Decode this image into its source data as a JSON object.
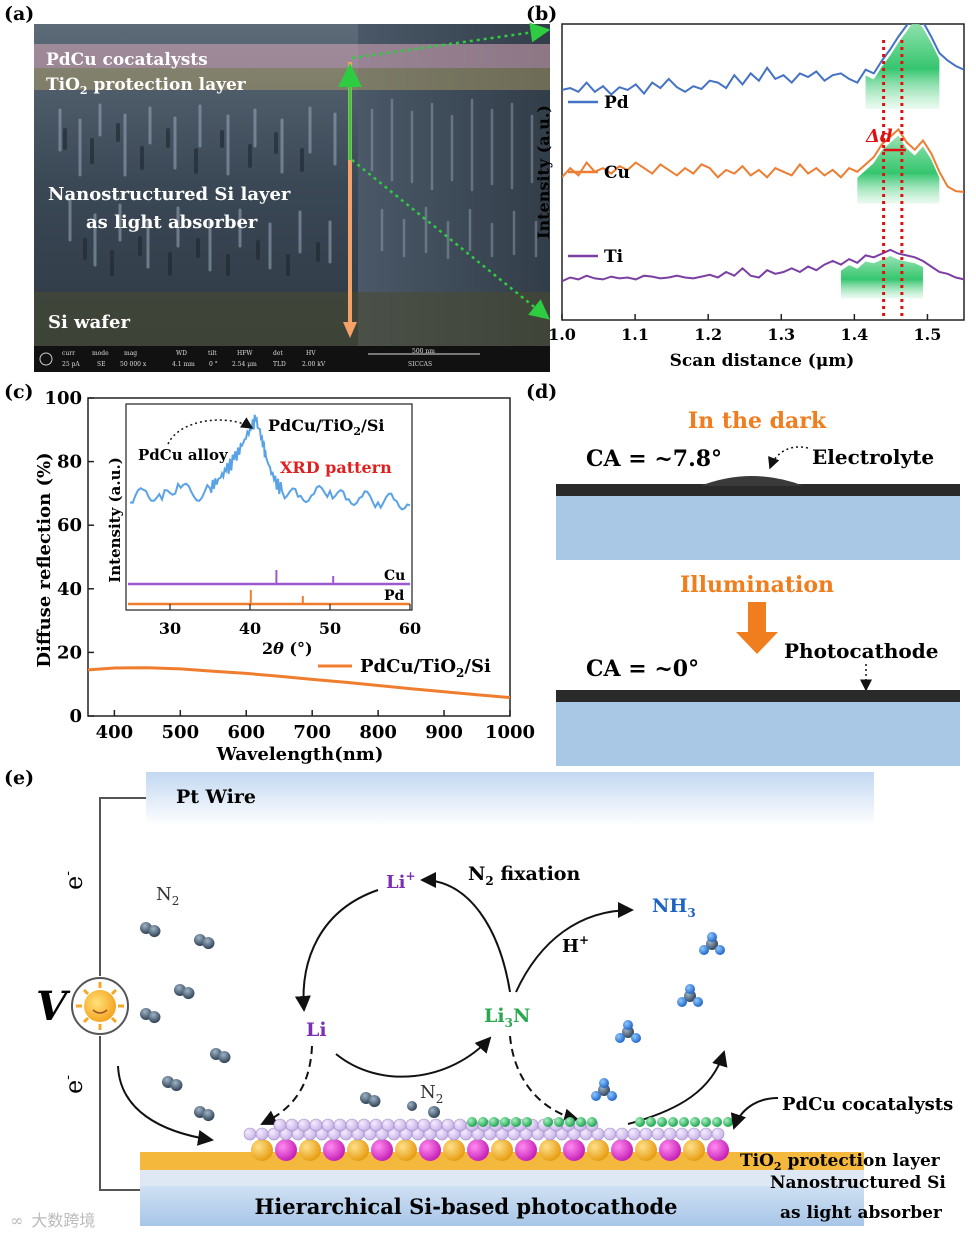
{
  "panel_labels": {
    "a": "(a)",
    "b": "(b)",
    "c": "(c)",
    "d": "(d)",
    "e": "(e)"
  },
  "a": {
    "labels": {
      "cocat": "PdCu cocatalysts",
      "tio2": "TiO",
      "tio2_sub": "2",
      "tio2_rest": " protection layer",
      "ns1": "Nanostructured Si layer",
      "ns2": "as light absorber",
      "wafer": "Si wafer"
    },
    "sem_bar": {
      "curr_h": "curr",
      "curr_v": "25 pA",
      "mode_h": "mode",
      "mode_v": "SE",
      "mag_h": "mag",
      "mag_v": "50 000 x",
      "wd_h": "WD",
      "wd_v": "4.1 mm",
      "tilt_h": "tilt",
      "tilt_v": "0 °",
      "hfw_h": "HFW",
      "hfw_v": "2.54 μm",
      "det_h": "det",
      "det_v": "TLD",
      "hv_h": "HV",
      "hv_v": "2.00 kV",
      "scale": "500 nm",
      "inst": "SICCAS"
    }
  },
  "c": {
    "legend": "PdCu/TiO",
    "legend_sub": "2",
    "legend_rest": "/Si",
    "inset": {
      "title": "PdCu/TiO",
      "title_sub": "2",
      "title_rest": "/Si",
      "peak_label": "PdCu alloy",
      "xrd": "XRD pattern",
      "ylabel": "Intensity (a.u.)",
      "xlabel_pre": "2",
      "xlabel_theta": "θ",
      "xlabel_post": " (°)",
      "cu": "Cu",
      "pd": "Pd",
      "xticks": [
        "30",
        "40",
        "50",
        "60"
      ]
    }
  },
  "d": {
    "dark": "In the dark",
    "ca1": "CA = ~7.8°",
    "electrolyte": "Electrolyte",
    "illum": "Illumination",
    "ca2": "CA = ~0°",
    "photocathode": "Photocathode",
    "colors": {
      "title": "#f07d1e",
      "arrow": "#f07d1e",
      "substrate": "#a8c8e6"
    }
  },
  "e": {
    "pt": "Pt Wire",
    "v": "V",
    "e_top": "e",
    "e_bot": "e",
    "n2": "N",
    "n2_sub": "2",
    "n2b": "N",
    "n2b_sub": "2",
    "li_plus": "Li",
    "li_plus_sup": "+",
    "n2fix": "N",
    "n2fix_sub": "2",
    "n2fix_rest": " fixation",
    "nh3": "NH",
    "nh3_sub": "3",
    "hplus": "H",
    "hplus_sup": "+",
    "li": "Li",
    "li3n": "Li",
    "li3n_sub": "3",
    "li3n_rest": "N",
    "cocat": "PdCu cocatalysts",
    "tio2": "TiO",
    "tio2_sub": "2",
    "tio2_rest": " protection layer",
    "ns1": "Nanostructured Si",
    "ns2": "as light absorber",
    "hier": "Hierarchical Si-based photocathode",
    "watermark": "大数跨境"
  },
  "chart_data": [
    {
      "panel": "b",
      "type": "line",
      "xlabel": "Scan distance (μm)",
      "ylabel": "Intensity (a.u.)",
      "xlim": [
        1.0,
        1.55
      ],
      "xticks": [
        "1.0",
        "1.1",
        "1.2",
        "1.3",
        "1.4",
        "1.5"
      ],
      "yticks": [],
      "delta_label": "Δd",
      "dashed_lines_x": [
        1.44,
        1.465
      ],
      "series": [
        {
          "name": "Pd",
          "color": "#4472c4",
          "offset": 0.74,
          "peak_x": 1.465,
          "values": [
            0.12,
            0.14,
            0.1,
            0.2,
            0.1,
            0.16,
            0.07,
            0.15,
            0.12,
            0.18,
            0.08,
            0.2,
            0.14,
            0.24,
            0.15,
            0.1,
            0.16,
            0.13,
            0.22,
            0.2,
            0.14,
            0.28,
            0.18,
            0.3,
            0.22,
            0.36,
            0.24,
            0.28,
            0.2,
            0.3,
            0.26,
            0.32,
            0.22,
            0.28,
            0.3,
            0.24,
            0.2,
            0.34,
            0.3,
            0.44,
            0.56,
            0.7,
            0.82,
            0.95,
            0.86,
            0.7,
            0.52,
            0.44,
            0.38,
            0.34
          ]
        },
        {
          "name": "Cu",
          "color": "#ed7d31",
          "offset": 0.42,
          "peak_x": 1.46,
          "values": [
            0.2,
            0.3,
            0.22,
            0.36,
            0.26,
            0.3,
            0.24,
            0.32,
            0.28,
            0.36,
            0.3,
            0.24,
            0.34,
            0.28,
            0.22,
            0.3,
            0.24,
            0.34,
            0.3,
            0.2,
            0.28,
            0.24,
            0.32,
            0.22,
            0.28,
            0.2,
            0.3,
            0.26,
            0.22,
            0.34,
            0.24,
            0.3,
            0.22,
            0.28,
            0.2,
            0.3,
            0.26,
            0.34,
            0.42,
            0.56,
            0.64,
            0.72,
            0.58,
            0.5,
            0.6,
            0.46,
            0.26,
            0.1,
            0.05,
            0.04
          ]
        },
        {
          "name": "Ti",
          "color": "#7b3fa3",
          "offset": 0.1,
          "peak_x": 1.44,
          "values": [
            0.1,
            0.14,
            0.12,
            0.16,
            0.13,
            0.12,
            0.15,
            0.13,
            0.14,
            0.12,
            0.16,
            0.15,
            0.13,
            0.14,
            0.16,
            0.14,
            0.13,
            0.15,
            0.17,
            0.14,
            0.2,
            0.16,
            0.24,
            0.16,
            0.14,
            0.22,
            0.18,
            0.2,
            0.24,
            0.2,
            0.26,
            0.22,
            0.28,
            0.32,
            0.28,
            0.34,
            0.3,
            0.38,
            0.36,
            0.4,
            0.44,
            0.4,
            0.38,
            0.36,
            0.32,
            0.26,
            0.2,
            0.18,
            0.14,
            0.12
          ]
        }
      ]
    },
    {
      "panel": "c",
      "type": "line",
      "xlabel": "Wavelength(nm)",
      "ylabel": "Diffuse reflection (%)",
      "xlim": [
        360,
        1000
      ],
      "ylim": [
        0,
        100
      ],
      "xticks": [
        400,
        500,
        600,
        700,
        800,
        900,
        1000
      ],
      "yticks": [
        0,
        20,
        40,
        60,
        80,
        100
      ],
      "series": [
        {
          "name": "PdCu/TiO2/Si",
          "color": "#f07d2e",
          "x": [
            360,
            400,
            450,
            500,
            550,
            600,
            650,
            700,
            750,
            800,
            850,
            900,
            950,
            1000
          ],
          "values": [
            14.5,
            15.1,
            15.2,
            14.8,
            14.1,
            13.4,
            12.5,
            11.5,
            10.6,
            9.6,
            8.6,
            7.6,
            6.7,
            5.8
          ]
        }
      ]
    },
    {
      "panel": "c-inset",
      "type": "line",
      "xlim": [
        25,
        60
      ],
      "xlabel": "2θ (°)",
      "ylabel": "Intensity (a.u.)",
      "series": [
        {
          "name": "PdCu/TiO2/Si",
          "color": "#5aa2e6",
          "x": [
            25,
            27,
            29,
            31,
            33,
            35,
            36,
            37,
            38,
            39,
            40,
            40.7,
            41.5,
            42,
            43,
            44,
            46,
            48,
            50,
            52,
            54,
            56,
            58,
            60
          ],
          "values": [
            0.42,
            0.5,
            0.44,
            0.55,
            0.46,
            0.52,
            0.58,
            0.64,
            0.72,
            0.82,
            0.94,
            1.0,
            0.88,
            0.74,
            0.58,
            0.5,
            0.46,
            0.48,
            0.5,
            0.44,
            0.46,
            0.42,
            0.44,
            0.4
          ]
        }
      ],
      "reference_lines": [
        {
          "name": "Cu",
          "color": "#9b59d0",
          "sticks": [
            43.3,
            50.4
          ]
        },
        {
          "name": "Pd",
          "color": "#f07d2e",
          "sticks": [
            40.1,
            46.6
          ]
        }
      ]
    }
  ]
}
